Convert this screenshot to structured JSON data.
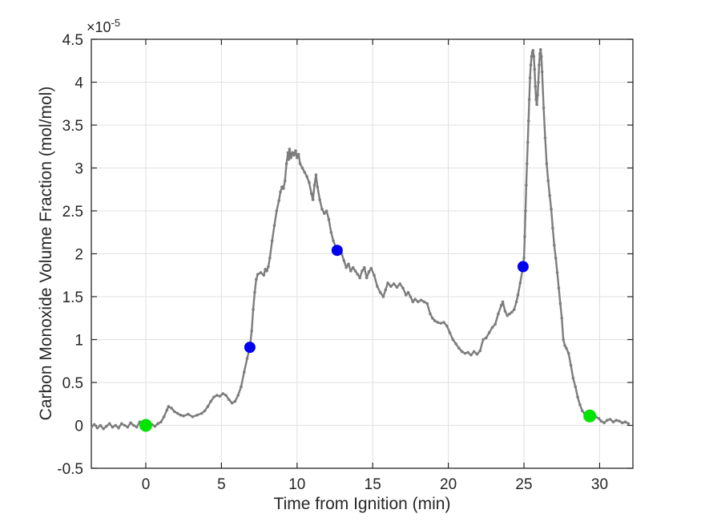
{
  "figure": {
    "background": "#ffffff",
    "text_color": "#262626"
  },
  "chart_data": {
    "type": "line",
    "title": "",
    "xlabel": "Time from Ignition (min)",
    "ylabel": "Carbon Monoxide Volume Fraction (mol/mol)",
    "y_offset_base": "×10",
    "y_offset_exponent": "-5",
    "y_units_multiplier": "1e-5",
    "xlim": [
      -3.6,
      32.2
    ],
    "ylim": [
      -0.5,
      4.5
    ],
    "xticks": [
      0,
      5,
      10,
      15,
      20,
      25,
      30
    ],
    "yticks": [
      -0.5,
      0,
      0.5,
      1,
      1.5,
      2,
      2.5,
      3,
      3.5,
      4,
      4.5
    ],
    "grid": true,
    "legend": "none",
    "colors": {
      "line": "#7d7d7d",
      "grid": "#e2e2e2",
      "axis": "#262626",
      "tick_text": "#262626",
      "marker_green": "#00e400",
      "marker_blue": "#0000ee"
    },
    "series": [
      {
        "name": "CO volume fraction",
        "color": "#7d7d7d",
        "x": [
          -3.6,
          -3.4,
          -3.2,
          -3.0,
          -2.8,
          -2.6,
          -2.4,
          -2.2,
          -2.0,
          -1.8,
          -1.6,
          -1.4,
          -1.2,
          -1.0,
          -0.8,
          -0.6,
          -0.4,
          -0.2,
          0.0,
          0.2,
          0.4,
          0.6,
          0.8,
          1.0,
          1.2,
          1.4,
          1.5,
          1.7,
          1.9,
          2.1,
          2.3,
          2.5,
          2.8,
          3.1,
          3.4,
          3.7,
          3.9,
          4.1,
          4.3,
          4.5,
          4.7,
          4.9,
          5.1,
          5.3,
          5.5,
          5.7,
          5.9,
          6.1,
          6.3,
          6.5,
          6.7,
          6.88,
          7.0,
          7.1,
          7.2,
          7.3,
          7.4,
          7.6,
          7.8,
          7.9,
          8.0,
          8.1,
          8.2,
          8.35,
          8.5,
          8.65,
          8.8,
          8.9,
          9.0,
          9.1,
          9.2,
          9.3,
          9.4,
          9.45,
          9.5,
          9.6,
          9.7,
          9.8,
          9.9,
          10.0,
          10.1,
          10.2,
          10.35,
          10.5,
          10.65,
          10.8,
          10.95,
          11.05,
          11.15,
          11.25,
          11.35,
          11.5,
          11.65,
          11.8,
          11.95,
          12.1,
          12.25,
          12.4,
          12.55,
          12.65,
          12.8,
          12.95,
          13.1,
          13.25,
          13.4,
          13.55,
          13.7,
          13.85,
          14.0,
          14.15,
          14.3,
          14.45,
          14.6,
          14.75,
          14.9,
          15.1,
          15.3,
          15.5,
          15.7,
          15.85,
          16.0,
          16.2,
          16.4,
          16.6,
          16.8,
          17.0,
          17.2,
          17.35,
          17.5,
          17.65,
          17.8,
          18.0,
          18.2,
          18.4,
          18.6,
          18.8,
          18.95,
          19.1,
          19.3,
          19.5,
          19.7,
          19.9,
          20.1,
          20.3,
          20.5,
          20.7,
          20.9,
          21.1,
          21.3,
          21.5,
          21.7,
          21.9,
          22.1,
          22.3,
          22.5,
          22.7,
          22.9,
          23.1,
          23.3,
          23.5,
          23.6,
          23.75,
          23.9,
          24.05,
          24.2,
          24.35,
          24.5,
          24.6,
          24.75,
          24.94,
          25.0,
          25.05,
          25.1,
          25.15,
          25.2,
          25.25,
          25.3,
          25.35,
          25.4,
          25.45,
          25.5,
          25.55,
          25.6,
          25.65,
          25.7,
          25.75,
          25.8,
          25.85,
          25.9,
          25.95,
          26.0,
          26.05,
          26.1,
          26.15,
          26.2,
          26.3,
          26.4,
          26.5,
          26.6,
          26.7,
          26.8,
          26.9,
          27.0,
          27.1,
          27.2,
          27.3,
          27.4,
          27.5,
          27.6,
          27.7,
          27.8,
          27.95,
          28.1,
          28.25,
          28.4,
          28.55,
          28.7,
          28.85,
          29.0,
          29.15,
          29.35,
          29.55,
          29.75,
          29.95,
          30.1,
          30.3,
          30.5,
          30.7,
          30.9,
          31.1,
          31.3,
          31.5,
          31.7,
          31.9
        ],
        "y": [
          -0.02,
          0.01,
          -0.03,
          0.0,
          -0.04,
          -0.01,
          0.02,
          -0.02,
          0.0,
          -0.03,
          0.02,
          0.0,
          -0.02,
          0.03,
          0.0,
          -0.02,
          0.04,
          0.0,
          0.0,
          -0.02,
          0.01,
          -0.01,
          0.02,
          0.04,
          0.1,
          0.18,
          0.22,
          0.2,
          0.16,
          0.14,
          0.12,
          0.11,
          0.13,
          0.1,
          0.12,
          0.14,
          0.17,
          0.22,
          0.28,
          0.33,
          0.35,
          0.34,
          0.37,
          0.35,
          0.3,
          0.26,
          0.28,
          0.35,
          0.45,
          0.62,
          0.78,
          0.91,
          1.1,
          1.35,
          1.55,
          1.7,
          1.76,
          1.78,
          1.75,
          1.82,
          1.8,
          1.85,
          1.95,
          2.15,
          2.33,
          2.5,
          2.62,
          2.72,
          2.78,
          2.76,
          2.85,
          3.05,
          3.18,
          3.1,
          3.22,
          3.12,
          3.18,
          3.15,
          3.2,
          3.12,
          3.16,
          3.05,
          3.0,
          2.95,
          2.9,
          2.83,
          2.7,
          2.63,
          2.8,
          2.92,
          2.78,
          2.63,
          2.52,
          2.47,
          2.5,
          2.4,
          2.25,
          2.15,
          2.08,
          2.04,
          2.02,
          2.0,
          1.92,
          1.84,
          1.88,
          1.8,
          1.84,
          1.8,
          1.76,
          1.72,
          1.8,
          1.84,
          1.72,
          1.79,
          1.83,
          1.75,
          1.62,
          1.55,
          1.5,
          1.58,
          1.66,
          1.62,
          1.65,
          1.61,
          1.65,
          1.6,
          1.52,
          1.55,
          1.5,
          1.44,
          1.47,
          1.44,
          1.46,
          1.44,
          1.42,
          1.3,
          1.25,
          1.22,
          1.2,
          1.19,
          1.2,
          1.16,
          1.08,
          1.0,
          0.95,
          0.9,
          0.86,
          0.84,
          0.85,
          0.82,
          0.86,
          0.83,
          0.87,
          1.0,
          1.02,
          1.08,
          1.14,
          1.18,
          1.3,
          1.4,
          1.44,
          1.33,
          1.28,
          1.3,
          1.32,
          1.35,
          1.44,
          1.52,
          1.66,
          1.85,
          1.95,
          2.2,
          2.5,
          2.8,
          3.05,
          3.3,
          3.55,
          3.8,
          4.05,
          4.2,
          4.3,
          4.35,
          4.37,
          4.3,
          4.15,
          3.95,
          3.8,
          3.74,
          3.85,
          4.0,
          4.2,
          4.33,
          4.38,
          4.3,
          4.12,
          3.7,
          3.35,
          3.05,
          2.85,
          2.68,
          2.52,
          2.3,
          2.1,
          1.95,
          1.78,
          1.6,
          1.42,
          1.25,
          1.0,
          0.93,
          0.9,
          0.84,
          0.7,
          0.55,
          0.45,
          0.33,
          0.24,
          0.17,
          0.14,
          0.12,
          0.11,
          0.1,
          0.1,
          0.08,
          0.05,
          0.03,
          0.06,
          0.07,
          0.04,
          0.06,
          0.05,
          0.03,
          0.04,
          0.02
        ]
      }
    ],
    "highlighted_points": [
      {
        "name": "green-marker-start",
        "x": 0.0,
        "y": 0.0,
        "color_key": "marker_green",
        "radius": 8
      },
      {
        "name": "green-marker-end",
        "x": 29.35,
        "y": 0.11,
        "color_key": "marker_green",
        "radius": 8
      },
      {
        "name": "blue-marker-1",
        "x": 6.88,
        "y": 0.91,
        "color_key": "marker_blue",
        "radius": 7
      },
      {
        "name": "blue-marker-2",
        "x": 12.65,
        "y": 2.04,
        "color_key": "marker_blue",
        "radius": 7
      },
      {
        "name": "blue-marker-3",
        "x": 24.94,
        "y": 1.85,
        "color_key": "marker_blue",
        "radius": 7
      }
    ]
  }
}
